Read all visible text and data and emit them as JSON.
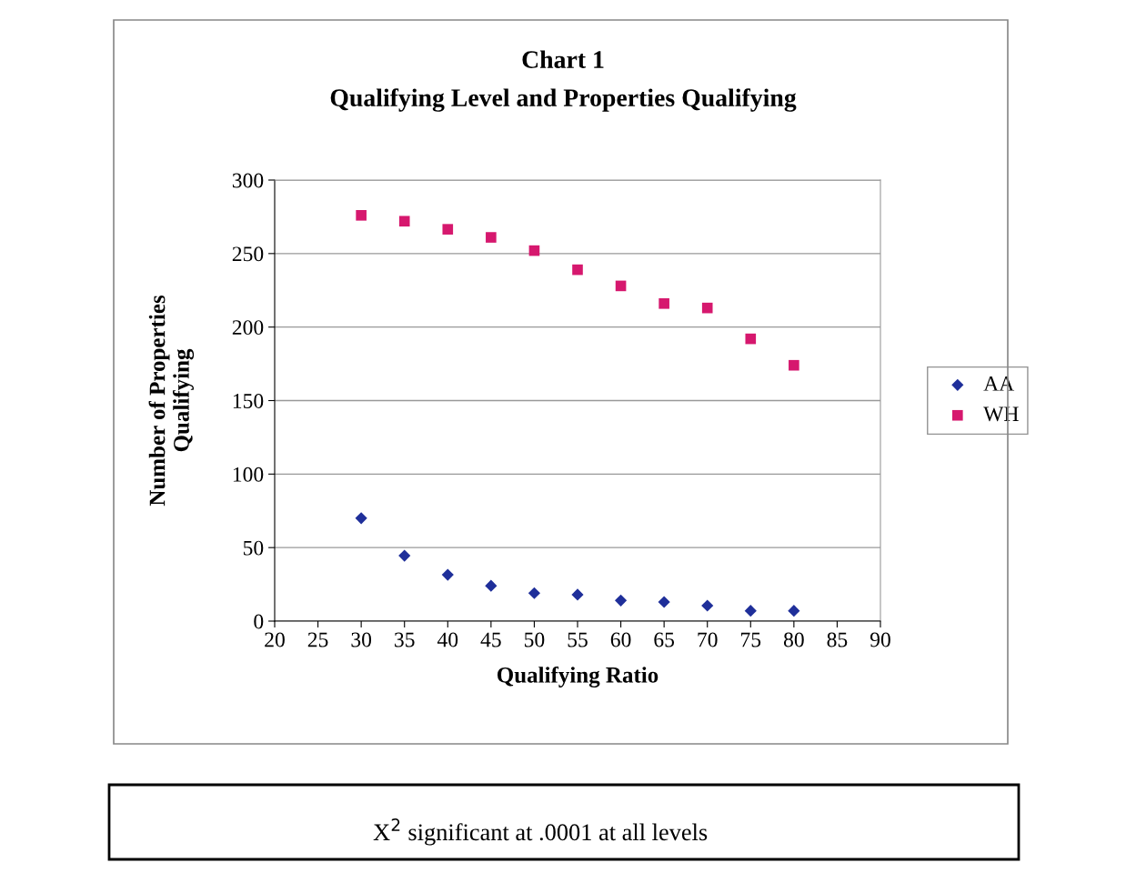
{
  "chart_data": {
    "type": "scatter",
    "title": "Chart 1",
    "subtitle": "Qualifying Level and Properties Qualifying",
    "xlabel": "Qualifying Ratio",
    "ylabel": "Number of Properties\nQualifying",
    "x": [
      30,
      35,
      40,
      45,
      50,
      55,
      60,
      65,
      70,
      75,
      80
    ],
    "series": [
      {
        "name": "AA",
        "color": "#1f2f9a",
        "marker": "diamond",
        "values": [
          70,
          44.5,
          31.5,
          24,
          19,
          18,
          14,
          13,
          10.5,
          7,
          7
        ]
      },
      {
        "name": "WH",
        "color": "#d6186e",
        "marker": "square",
        "values": [
          276,
          272,
          266.5,
          261,
          252,
          239,
          228,
          216,
          213,
          192,
          174
        ]
      }
    ],
    "xlim": [
      20,
      90
    ],
    "xticks": [
      20,
      25,
      30,
      35,
      40,
      45,
      50,
      55,
      60,
      65,
      70,
      75,
      80,
      85,
      90
    ],
    "ylim": [
      0,
      300
    ],
    "yticks": [
      0,
      50,
      100,
      150,
      200,
      250,
      300
    ],
    "grid": "y",
    "legend": "right",
    "annotations": [
      "X$^{2}$ significant at .0001 at all levels"
    ]
  }
}
